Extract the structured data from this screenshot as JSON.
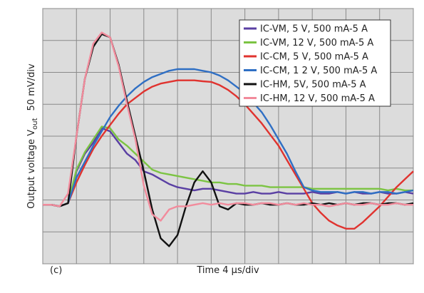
{
  "chart_data": {
    "type": "line",
    "panel_label": "(c)",
    "x_label": "Time 4 μs/div",
    "y_label": "Output voltage V",
    "y_label_sub": "out",
    "y_label_unit": "50 mV/div",
    "xlim": [
      0,
      11
    ],
    "ylim": [
      0,
      8
    ],
    "xticks": [
      0,
      1,
      2,
      3,
      4,
      5,
      6,
      7,
      8,
      9,
      10,
      11
    ],
    "yticks": [
      0,
      1,
      2,
      3,
      4,
      5,
      6,
      7,
      8
    ],
    "grid": true,
    "legend": "upper right",
    "x": [
      0,
      0.25,
      0.5,
      0.75,
      1,
      1.25,
      1.5,
      1.75,
      2,
      2.25,
      2.5,
      2.75,
      3,
      3.25,
      3.5,
      3.75,
      4,
      4.25,
      4.5,
      4.75,
      5,
      5.25,
      5.5,
      5.75,
      6,
      6.25,
      6.5,
      6.75,
      7,
      7.25,
      7.5,
      7.75,
      8,
      8.25,
      8.5,
      8.75,
      9,
      9.25,
      9.5,
      9.75,
      10,
      10.25,
      10.5,
      10.75,
      11
    ],
    "series": [
      {
        "name": "IC-VM, 5 V, 500 mA-5 A",
        "color": "#5a3fa3",
        "values": [
          1.85,
          1.85,
          1.8,
          1.9,
          2.9,
          3.45,
          3.8,
          4.25,
          4.15,
          3.8,
          3.45,
          3.25,
          2.9,
          2.8,
          2.65,
          2.5,
          2.4,
          2.35,
          2.3,
          2.35,
          2.35,
          2.3,
          2.25,
          2.2,
          2.2,
          2.25,
          2.2,
          2.2,
          2.25,
          2.2,
          2.2,
          2.2,
          2.25,
          2.2,
          2.2,
          2.25,
          2.2,
          2.25,
          2.2,
          2.2,
          2.25,
          2.2,
          2.2,
          2.25,
          2.2
        ]
      },
      {
        "name": "IC-VM, 12 V, 500 mA-5 A",
        "color": "#7cc443",
        "values": [
          1.85,
          1.85,
          1.8,
          1.9,
          2.95,
          3.5,
          3.9,
          4.3,
          4.25,
          3.9,
          3.7,
          3.45,
          3.2,
          2.95,
          2.85,
          2.8,
          2.75,
          2.7,
          2.65,
          2.6,
          2.55,
          2.55,
          2.5,
          2.5,
          2.45,
          2.45,
          2.45,
          2.4,
          2.4,
          2.4,
          2.4,
          2.4,
          2.35,
          2.35,
          2.35,
          2.35,
          2.35,
          2.35,
          2.35,
          2.35,
          2.35,
          2.3,
          2.35,
          2.3,
          2.3
        ]
      },
      {
        "name": "IC-CM, 5 V, 500 mA-5 A",
        "color": "#e0332f",
        "values": [
          1.85,
          1.85,
          1.8,
          1.9,
          2.55,
          3.1,
          3.6,
          4.0,
          4.35,
          4.7,
          5.0,
          5.2,
          5.4,
          5.55,
          5.65,
          5.7,
          5.75,
          5.75,
          5.75,
          5.72,
          5.7,
          5.6,
          5.45,
          5.25,
          5.0,
          4.7,
          4.4,
          4.05,
          3.7,
          3.25,
          2.8,
          2.35,
          1.9,
          1.6,
          1.35,
          1.2,
          1.1,
          1.1,
          1.3,
          1.55,
          1.8,
          2.1,
          2.4,
          2.65,
          2.9
        ]
      },
      {
        "name": "IC-CM, 1 2 V, 500 mA-5 A",
        "color": "#2f6fc4",
        "values": [
          1.85,
          1.85,
          1.8,
          1.9,
          2.7,
          3.2,
          3.7,
          4.15,
          4.6,
          4.95,
          5.25,
          5.5,
          5.7,
          5.85,
          5.95,
          6.05,
          6.1,
          6.1,
          6.1,
          6.05,
          6.0,
          5.9,
          5.75,
          5.55,
          5.35,
          5.05,
          4.75,
          4.35,
          3.9,
          3.45,
          2.9,
          2.4,
          2.3,
          2.25,
          2.25,
          2.25,
          2.2,
          2.25,
          2.25,
          2.2,
          2.25,
          2.25,
          2.2,
          2.25,
          2.3
        ]
      },
      {
        "name": "IC-HM, 5V, 500 mA-5 A",
        "color": "#111111",
        "values": [
          1.85,
          1.85,
          1.8,
          1.9,
          4.0,
          5.8,
          6.8,
          7.2,
          7.1,
          6.25,
          5.1,
          4.0,
          2.9,
          1.7,
          0.8,
          0.55,
          0.9,
          1.8,
          2.55,
          2.9,
          2.55,
          1.8,
          1.7,
          1.9,
          1.85,
          1.85,
          1.9,
          1.85,
          1.85,
          1.9,
          1.85,
          1.85,
          1.9,
          1.85,
          1.9,
          1.85,
          1.9,
          1.85,
          1.9,
          1.9,
          1.85,
          1.9,
          1.9,
          1.85,
          1.9
        ]
      },
      {
        "name": "IC-HM, 12 V, 500 mA-5 A",
        "color": "#f28b9c",
        "values": [
          1.85,
          1.85,
          1.8,
          2.2,
          4.0,
          5.8,
          6.9,
          7.25,
          7.1,
          6.2,
          5.0,
          3.9,
          2.45,
          1.55,
          1.35,
          1.7,
          1.8,
          1.8,
          1.85,
          1.9,
          1.85,
          1.9,
          1.85,
          1.9,
          1.9,
          1.85,
          1.9,
          1.9,
          1.85,
          1.9,
          1.85,
          1.9,
          1.85,
          1.85,
          1.8,
          1.85,
          1.9,
          1.85,
          1.85,
          1.9,
          1.85,
          1.85,
          1.9,
          1.85,
          1.85
        ]
      }
    ]
  }
}
